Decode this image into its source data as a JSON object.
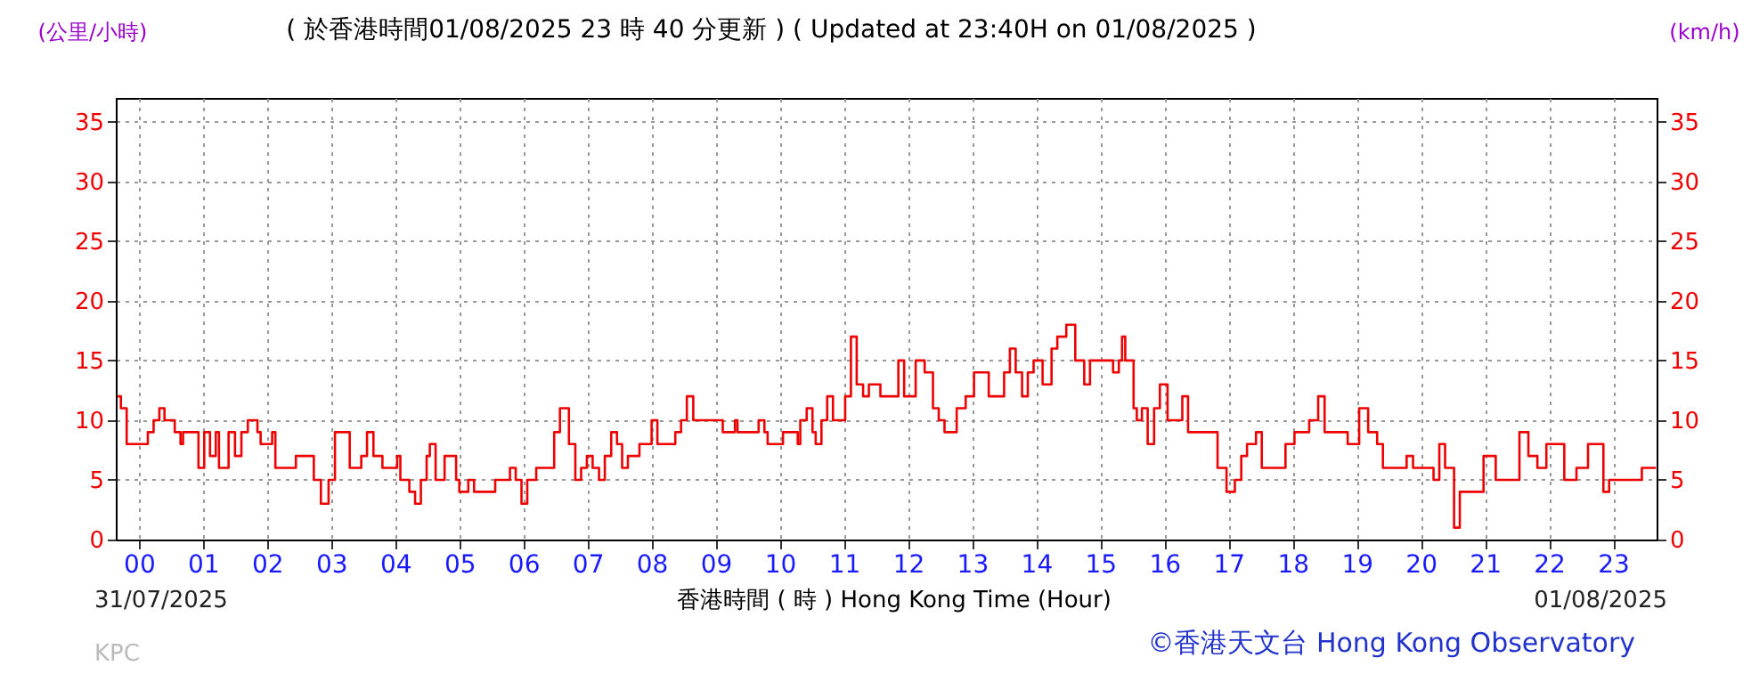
{
  "chart_data": {
    "type": "step",
    "title": "( 於香港時間01/08/2025 23 時 40 分更新 ) ( Updated at 23:40H on 01/08/2025 )",
    "xlabel": "香港時間 ( 時 )  Hong Kong Time (Hour)",
    "ylabel": "(公里/小時)",
    "y2label": "(km/h)",
    "annotations": [
      "31/07/2025",
      "01/08/2025",
      "KPC",
      "©香港天文台 Hong Kong Observatory"
    ],
    "series": [
      {
        "color": "#ee0000",
        "x": [
          -0.33,
          -0.28,
          -0.19,
          0.09,
          0.14,
          0.23,
          0.32,
          0.4,
          0.51,
          0.56,
          0.65,
          0.69,
          0.83,
          0.93,
          1.02,
          1.11,
          1.2,
          1.25,
          1.4,
          1.5,
          1.6,
          1.7,
          1.85,
          1.9,
          2.08,
          2.13,
          2.41,
          2.45,
          2.64,
          2.73,
          2.84,
          2.96,
          3.06,
          3.2,
          3.29,
          3.38,
          3.47,
          3.56,
          3.66,
          3.8,
          3.94,
          4.03,
          4.08,
          4.22,
          4.31,
          4.4,
          4.49,
          4.54,
          4.63,
          4.77,
          4.95,
          5.0,
          5.14,
          5.23,
          5.51,
          5.56,
          5.69,
          5.79,
          5.88,
          5.97,
          6.06,
          6.2,
          6.39,
          6.48,
          6.57,
          6.71,
          6.81,
          6.9,
          6.99,
          7.08,
          7.18,
          7.27,
          7.37,
          7.46,
          7.54,
          7.63,
          7.77,
          7.81,
          7.95,
          8.0,
          8.09,
          8.19,
          8.32,
          8.37,
          8.46,
          8.55,
          8.65,
          9.02,
          9.11,
          9.25,
          9.3,
          9.34,
          9.62,
          9.67,
          9.76,
          9.81,
          10.0,
          10.05,
          10.23,
          10.28,
          10.32,
          10.42,
          10.51,
          10.56,
          10.65,
          10.74,
          10.83,
          10.93,
          11.02,
          11.11,
          11.2,
          11.3,
          11.39,
          11.57,
          11.66,
          11.85,
          11.94,
          12.03,
          12.12,
          12.26,
          12.39,
          12.48,
          12.57,
          12.76,
          12.9,
          12.99,
          13.03,
          13.26,
          13.35,
          13.5,
          13.59,
          13.68,
          13.78,
          13.87,
          13.96,
          14.1,
          14.24,
          14.33,
          14.47,
          14.61,
          14.75,
          14.84,
          15.02,
          15.2,
          15.29,
          15.34,
          15.39,
          15.48,
          15.52,
          15.57,
          15.65,
          15.74,
          15.84,
          15.93,
          16.05,
          16.19,
          16.28,
          16.37,
          16.46,
          16.6,
          16.83,
          16.97,
          17.1,
          17.2,
          17.29,
          17.43,
          17.52,
          17.61,
          17.89,
          18.03,
          18.17,
          18.26,
          18.4,
          18.5,
          18.63,
          18.86,
          18.95,
          19.04,
          19.18,
          19.32,
          19.41,
          19.69,
          19.78,
          19.88,
          20.11,
          20.2,
          20.29,
          20.38,
          20.52,
          20.61,
          20.8,
          20.98,
          21.08,
          21.17,
          21.35,
          21.54,
          21.68,
          21.82,
          21.96,
          22.1,
          22.24,
          22.43,
          22.61,
          22.75,
          22.85,
          22.94,
          23.08,
          23.4,
          23.45,
          23.67
        ],
        "values": [
          12,
          11,
          8,
          8,
          9,
          10,
          11,
          10,
          10,
          9,
          8,
          9,
          9,
          6,
          9,
          7,
          9,
          6,
          9,
          7,
          9,
          10,
          9,
          8,
          9,
          6,
          6,
          7,
          7,
          5,
          3,
          5,
          9,
          9,
          6,
          6,
          7,
          9,
          7,
          6,
          6,
          7,
          5,
          4,
          3,
          5,
          7,
          8,
          5,
          7,
          5,
          4,
          5,
          4,
          4,
          5,
          5,
          6,
          5,
          3,
          5,
          6,
          6,
          9,
          11,
          8,
          5,
          6,
          7,
          6,
          5,
          7,
          9,
          8,
          6,
          7,
          7,
          8,
          8,
          10,
          8,
          8,
          8,
          9,
          10,
          12,
          10,
          10,
          9,
          9,
          10,
          9,
          9,
          10,
          9,
          8,
          8,
          9,
          9,
          8,
          10,
          11,
          9,
          8,
          10,
          12,
          10,
          10,
          12,
          17,
          13,
          12,
          13,
          12,
          12,
          15,
          12,
          12,
          15,
          14,
          11,
          10,
          9,
          11,
          12,
          12,
          14,
          12,
          12,
          14,
          16,
          14,
          12,
          14,
          15,
          13,
          16,
          17,
          18,
          15,
          13,
          15,
          15,
          14,
          15,
          17,
          15,
          15,
          11,
          10,
          11,
          8,
          11,
          13,
          10,
          10,
          12,
          9,
          9,
          9,
          6,
          4,
          5,
          7,
          8,
          9,
          6,
          6,
          8,
          9,
          9,
          10,
          12,
          9,
          9,
          8,
          8,
          11,
          9,
          8,
          6,
          6,
          7,
          6,
          6,
          5,
          8,
          6,
          1,
          4,
          4,
          7,
          7,
          5,
          5,
          9,
          7,
          6,
          8,
          8,
          5,
          6,
          8,
          8,
          4,
          5,
          5,
          5,
          6,
          6
        ]
      }
    ],
    "xlim": [
      -0.36,
      23.68
    ],
    "xticks": [
      {
        "value": 0,
        "label": "00"
      },
      {
        "value": 1,
        "label": "01"
      },
      {
        "value": 2,
        "label": "02"
      },
      {
        "value": 3,
        "label": "03"
      },
      {
        "value": 4,
        "label": "04"
      },
      {
        "value": 5,
        "label": "05"
      },
      {
        "value": 6,
        "label": "06"
      },
      {
        "value": 7,
        "label": "07"
      },
      {
        "value": 8,
        "label": "08"
      },
      {
        "value": 9,
        "label": "09"
      },
      10,
      11,
      12,
      13,
      14,
      15,
      16,
      17,
      18,
      19,
      20,
      21,
      22,
      23
    ],
    "ylim": [
      0,
      37
    ],
    "yticks": [
      0,
      5,
      10,
      15,
      20,
      25,
      30,
      35
    ],
    "y2lim": [
      0,
      37
    ],
    "y2ticks": [
      0,
      5,
      10,
      15,
      20,
      25,
      30,
      35
    ],
    "grid": true
  }
}
